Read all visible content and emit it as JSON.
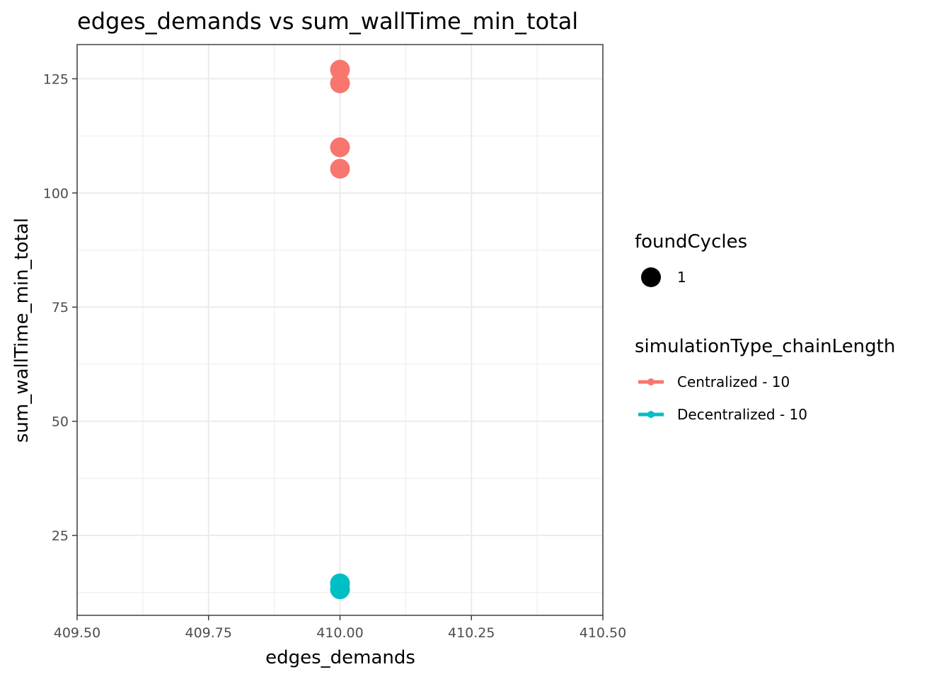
{
  "chart_data": {
    "type": "scatter",
    "title": "edges_demands  vs  sum_wallTime_min_total",
    "xlabel": "edges_demands",
    "ylabel": "sum_wallTime_min_total",
    "xlim": [
      409.5,
      410.5
    ],
    "ylim": [
      7.5,
      132.5
    ],
    "x_ticks": [
      409.5,
      409.75,
      410.0,
      410.25,
      410.5
    ],
    "x_tick_labels": [
      "409.50",
      "409.75",
      "410.00",
      "410.25",
      "410.50"
    ],
    "y_ticks": [
      25,
      50,
      75,
      100,
      125
    ],
    "y_tick_labels": [
      "25",
      "50",
      "75",
      "100",
      "125"
    ],
    "grid": true,
    "legend_position": "right",
    "size_legend": {
      "title": "foundCycles",
      "entries": [
        "1"
      ]
    },
    "color_legend": {
      "title": "simulationType_chainLength"
    },
    "series": [
      {
        "name": "Centralized - 10",
        "color": "#F8766D",
        "points": [
          {
            "x": 410.0,
            "y": 127.0
          },
          {
            "x": 410.0,
            "y": 124.0
          },
          {
            "x": 410.0,
            "y": 110.0
          },
          {
            "x": 410.0,
            "y": 105.3
          }
        ]
      },
      {
        "name": "Decentralized - 10",
        "color": "#00BFC4",
        "points": [
          {
            "x": 410.0,
            "y": 14.5
          },
          {
            "x": 410.0,
            "y": 13.2
          }
        ]
      }
    ]
  }
}
